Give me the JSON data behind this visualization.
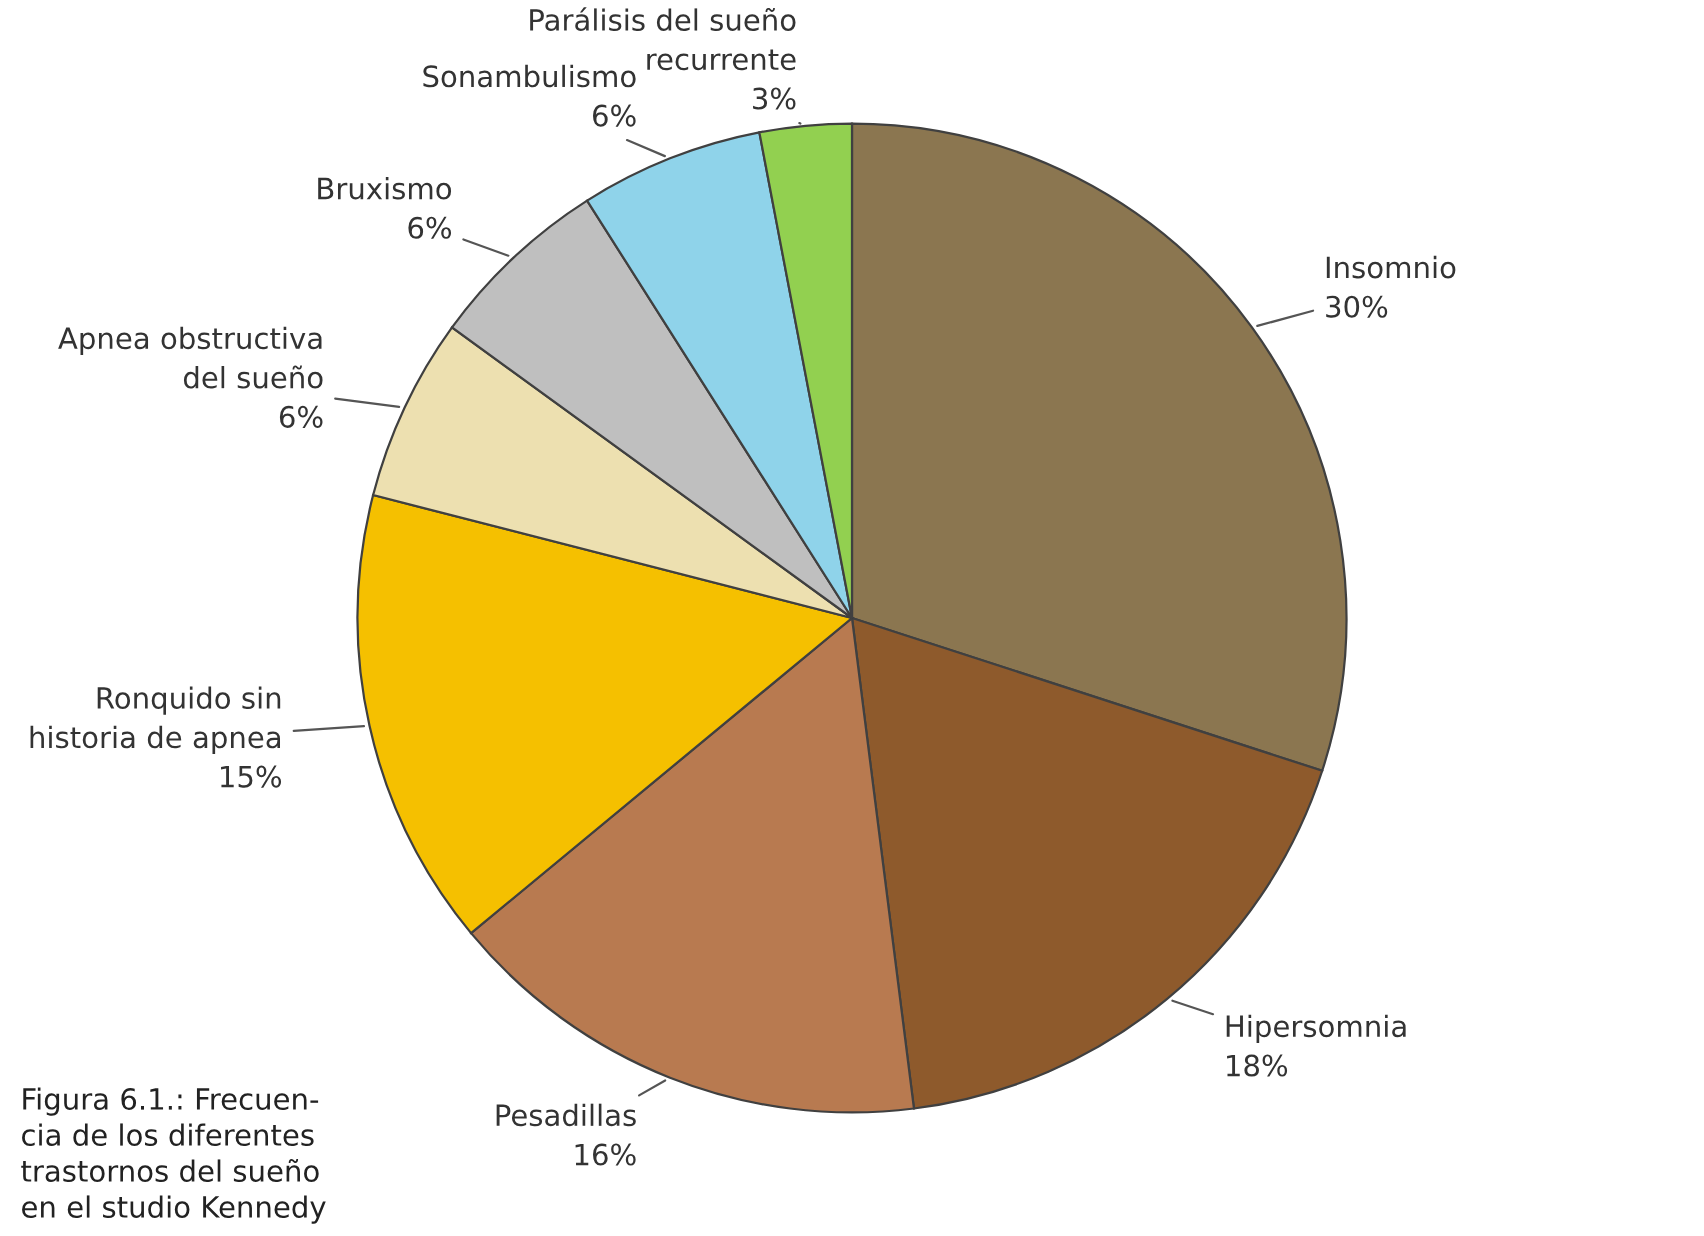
{
  "chart_data": {
    "type": "pie",
    "categories": [
      "Insomnio",
      "Hipersomnia",
      "Pesadillas",
      "Ronquido sin\nhistoria de apnea",
      "Apnea obstructiva\ndel sueño",
      "Bruxismo",
      "Sonambulismo",
      "Parálisis del sueño\nrecurrente"
    ],
    "values": [
      30,
      18,
      16,
      15,
      6,
      6,
      6,
      3
    ],
    "value_labels": [
      "30%",
      "18%",
      "16%",
      "15%",
      "6%",
      "6%",
      "6%",
      "3%"
    ],
    "colors": [
      "#8b7650",
      "#8e5a2c",
      "#b87a50",
      "#f5c000",
      "#ede0b0",
      "#bfbfbf",
      "#8fd3ea",
      "#92d050"
    ],
    "annotations": [
      "Figura 6.1.: Frecuen-\ncia de los diferentes\ntrastornos del sueño\nen el studio Kennedy"
    ]
  }
}
